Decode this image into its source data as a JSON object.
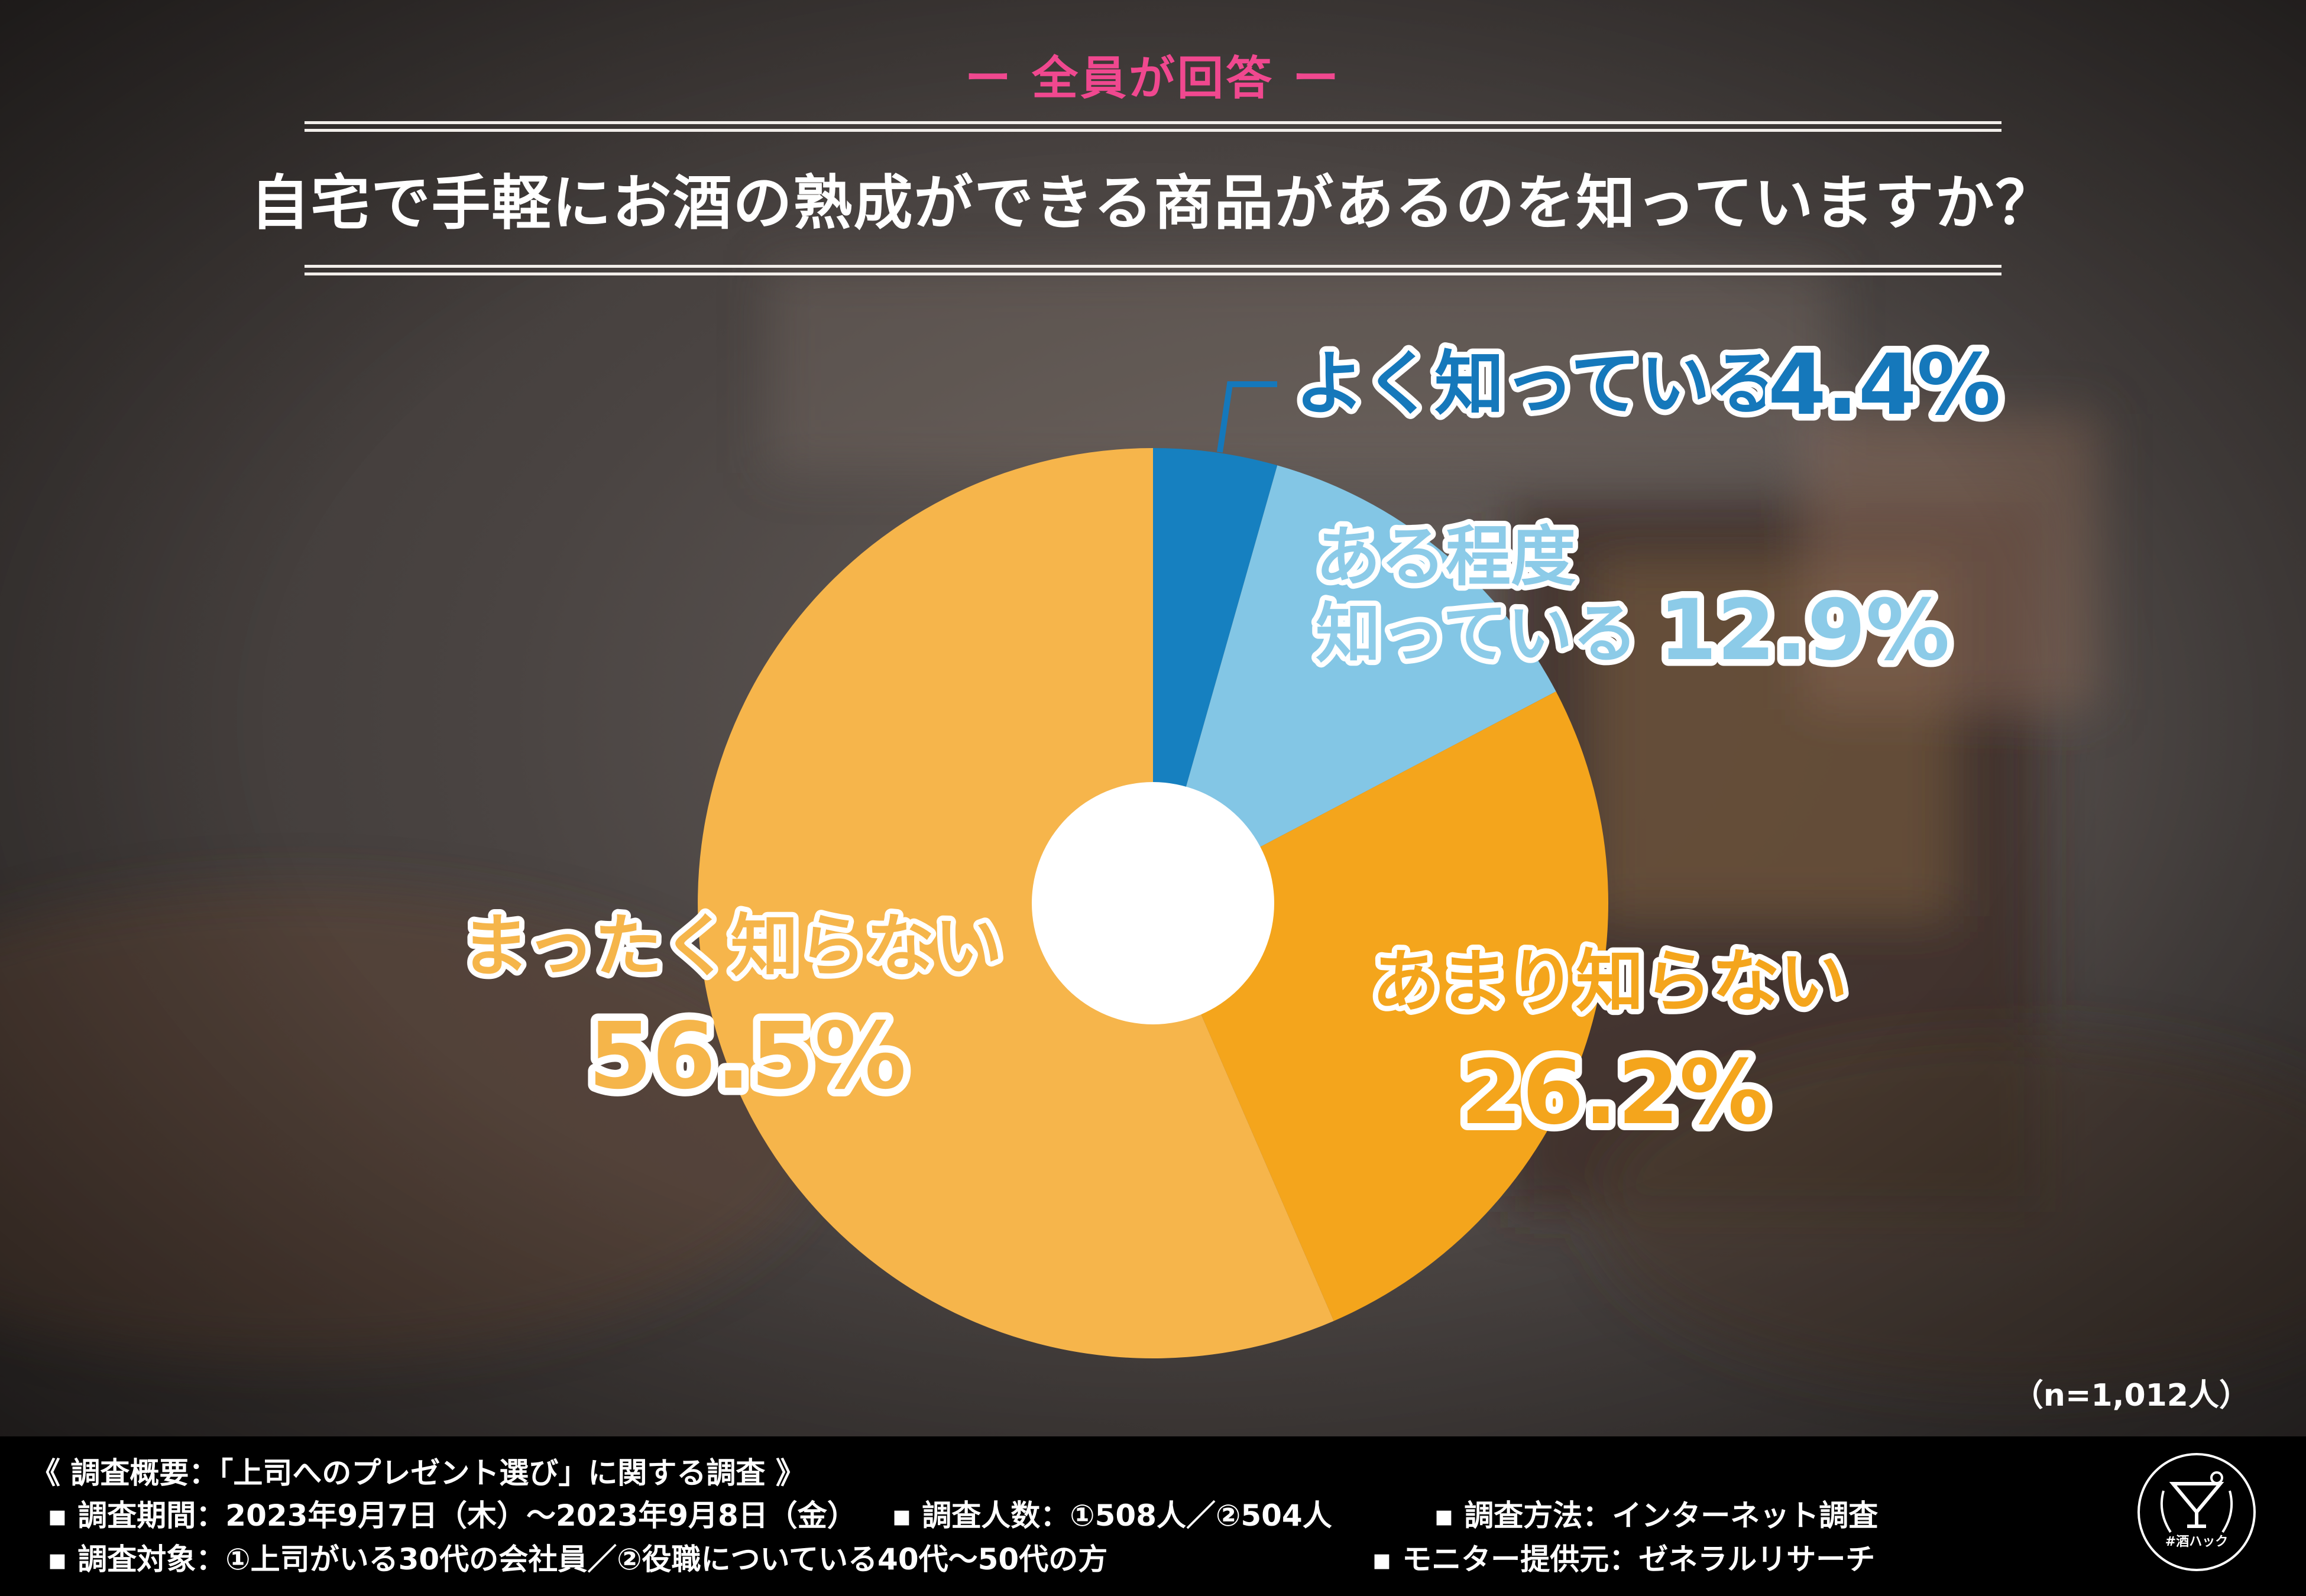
{
  "header": {
    "tag": "ー 全員が回答 ー",
    "question": "自宅で手軽にお酒の熟成ができる商品があるのを知っていますか？"
  },
  "chart_data": {
    "type": "pie",
    "title": "自宅で手軽にお酒の熟成ができる商品があるのを知っていますか？",
    "donut": true,
    "categories": [
      "よく知っている",
      "ある程度知っている",
      "あまり知らない",
      "まったく知らない"
    ],
    "values": [
      4.4,
      12.9,
      26.2,
      56.5
    ],
    "unit": "%",
    "value_labels": [
      "4.4%",
      "12.9%",
      "26.2%",
      "56.5%"
    ],
    "colors": [
      "#1680c0",
      "#83c6e5",
      "#f4a51c",
      "#f6b54b"
    ],
    "label_colors": [
      "#1578bb",
      "#8ccbe8",
      "#f4a51c",
      "#f5b54a"
    ],
    "slice_labels": [
      {
        "lines": [
          "よく知っている"
        ],
        "value": "4.4%"
      },
      {
        "lines": [
          "ある程度",
          "知っている"
        ],
        "value": "12.9%"
      },
      {
        "lines": [
          "あまり知らない"
        ],
        "value": "26.2%"
      },
      {
        "lines": [
          "まったく知らない"
        ],
        "value": "56.5%"
      }
    ],
    "sample": "（n=1,012人）"
  },
  "footer": {
    "title": "《 調査概要：「上司へのプレゼント選び」に関する調査 》",
    "period": "▪ 調査期間：2023年9月7日（木）～2023年9月8日（金）",
    "count": "▪ 調査人数：①508人／②504人",
    "method": "▪ 調査方法：インターネット調査",
    "target": "▪ 調査対象：①上司がいる30代の会社員／②役職についている40代～50代の方",
    "provider": "▪ モニター提供元：ゼネラルリサーチ",
    "logo_text": "#酒ハック"
  }
}
